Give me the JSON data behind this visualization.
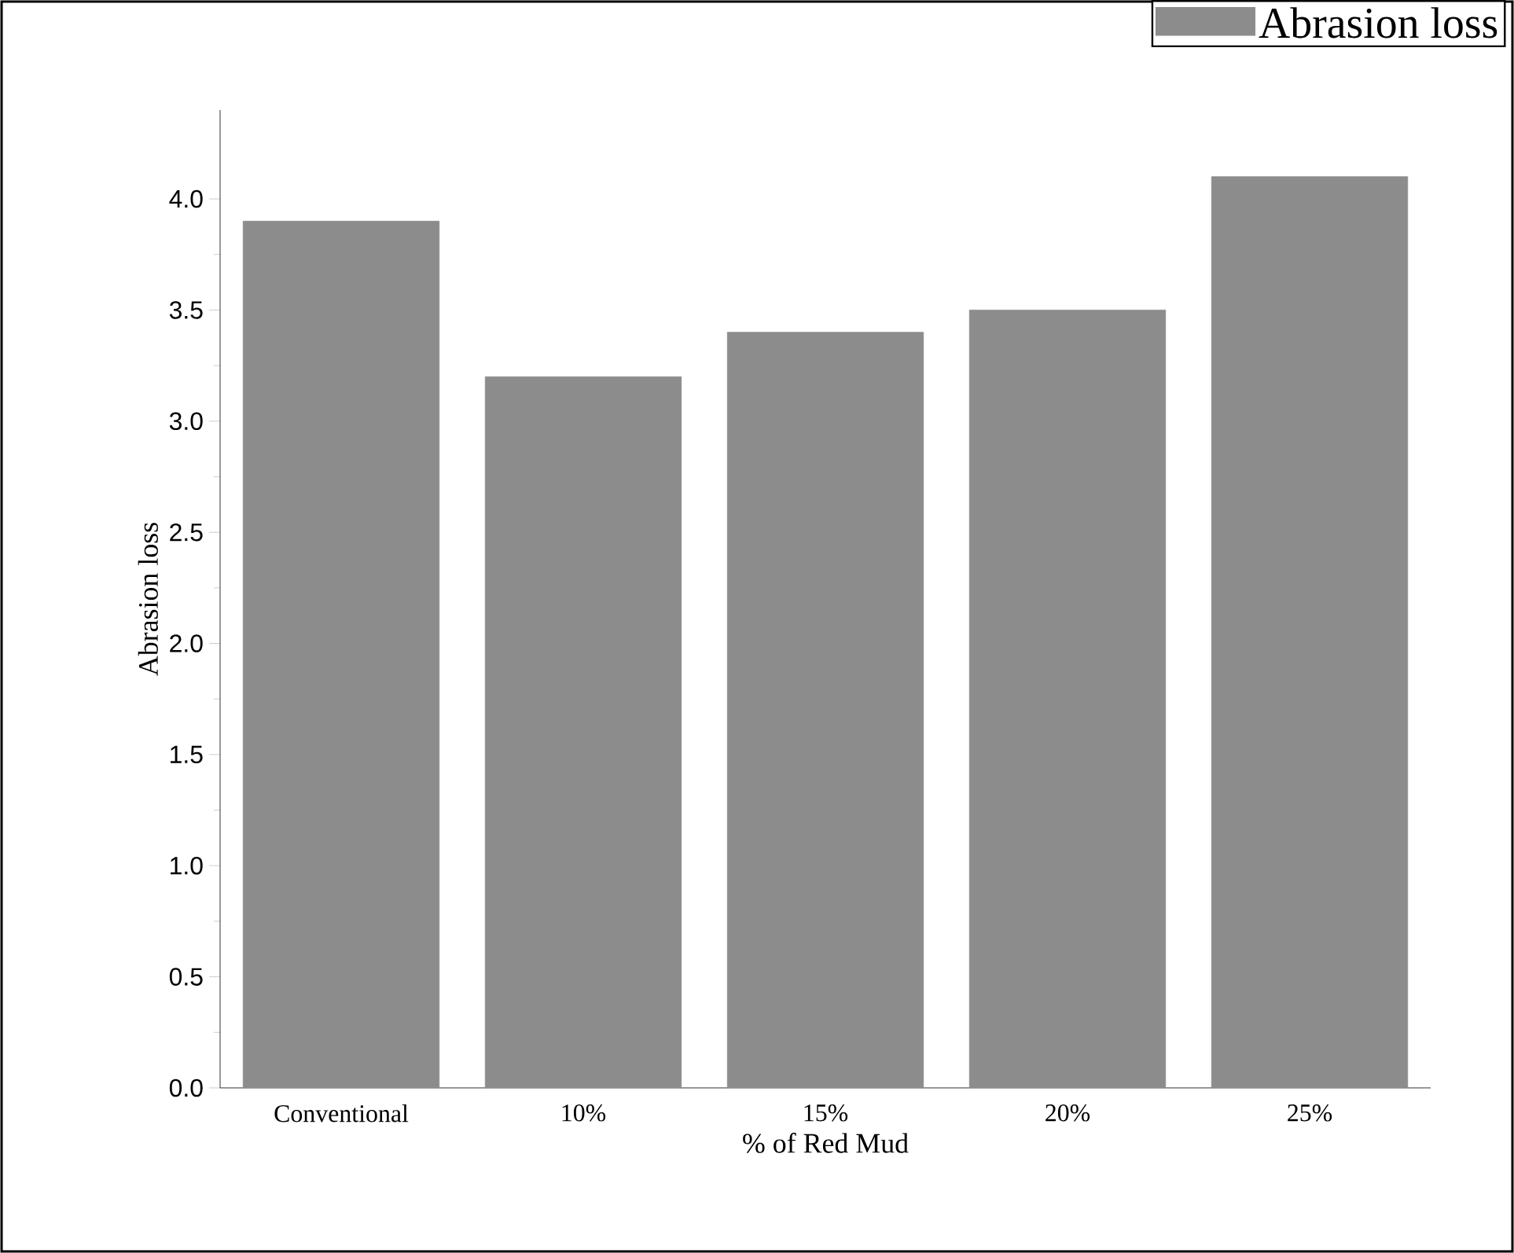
{
  "chart_data": {
    "type": "bar",
    "xlabel": "% of Red Mud",
    "ylabel": "Abrasion loss",
    "categories": [
      "Conventional",
      "10%",
      "15%",
      "20%",
      "25%"
    ],
    "series": [
      {
        "name": "Abrasion loss",
        "color": "#8c8c8c",
        "values": [
          3.9,
          3.2,
          3.4,
          3.5,
          4.1
        ]
      }
    ],
    "ylim": [
      0,
      4.4
    ],
    "yticks": [
      {
        "value": 0,
        "label": "0.0"
      },
      {
        "value": 0.5,
        "label": "0.5"
      },
      {
        "value": 1,
        "label": "1.0"
      },
      {
        "value": 1.5,
        "label": "1.5"
      },
      {
        "value": 2,
        "label": "2.0"
      },
      {
        "value": 2.5,
        "label": "2.5"
      },
      {
        "value": 3,
        "label": "3.0"
      },
      {
        "value": 3.5,
        "label": "3.5"
      },
      {
        "value": 4,
        "label": "4.0"
      }
    ],
    "legend": "top right",
    "grid": false
  }
}
